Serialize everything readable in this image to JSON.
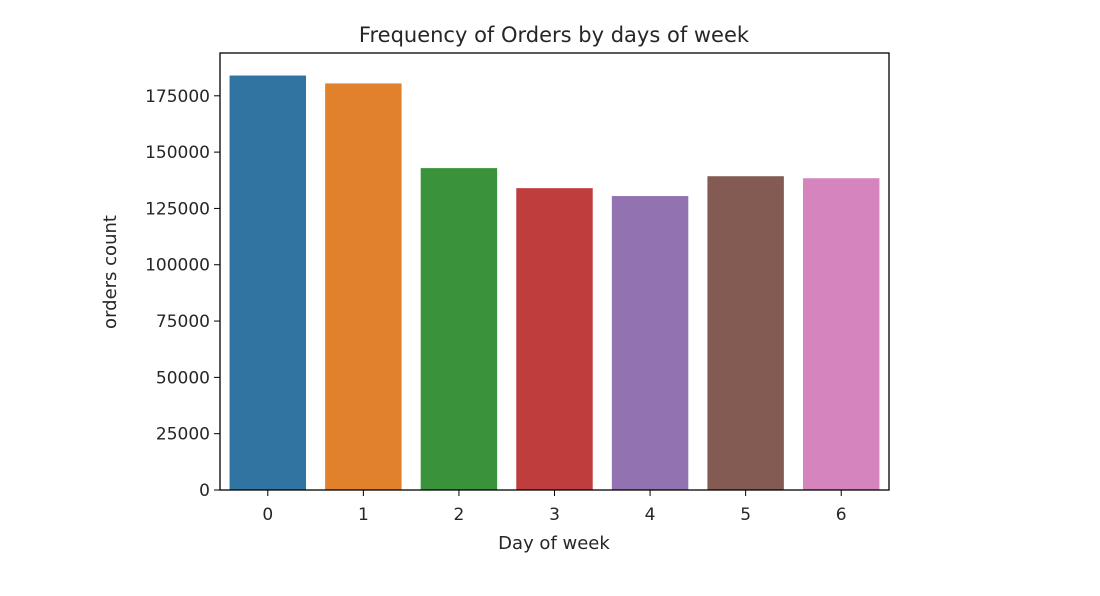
{
  "chart_data": {
    "type": "bar",
    "title": "Frequency of Orders by days of week",
    "xlabel": "Day of week",
    "ylabel": "orders count",
    "categories": [
      "0",
      "1",
      "2",
      "3",
      "4",
      "5",
      "6"
    ],
    "values": [
      184000,
      180500,
      142900,
      134000,
      130500,
      139300,
      138400
    ],
    "ylim": [
      0,
      194000
    ],
    "yticks": [
      0,
      25000,
      50000,
      75000,
      100000,
      125000,
      150000,
      175000
    ],
    "ytick_labels": [
      "0",
      "25000",
      "50000",
      "75000",
      "100000",
      "125000",
      "150000",
      "175000"
    ],
    "colors": [
      "#3274a1",
      "#e1812c",
      "#3a923a",
      "#c03d3e",
      "#9372b2",
      "#845b53",
      "#d684bd"
    ],
    "grid": false,
    "legend": "none"
  }
}
